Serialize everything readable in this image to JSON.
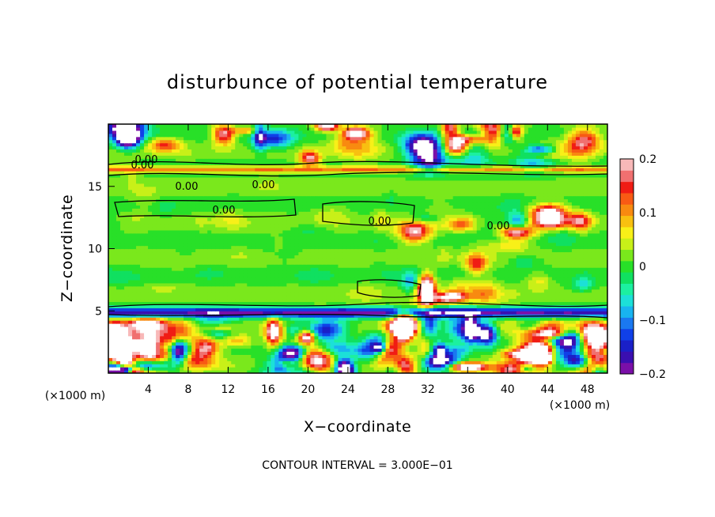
{
  "chart_data": {
    "type": "heatmap",
    "title": "disturbunce of potential temperature",
    "xlabel": "X−coordinate",
    "ylabel": "Z−coordinate",
    "x_unit": "(×1000 m)",
    "y_unit": "(×1000 m)",
    "xlim": [
      0,
      50
    ],
    "ylim": [
      0,
      20
    ],
    "x_ticks": [
      4,
      8,
      12,
      16,
      20,
      24,
      28,
      32,
      36,
      40,
      44,
      48
    ],
    "y_ticks": [
      5,
      10,
      15
    ],
    "colorbar": {
      "range": [
        -0.2,
        0.2
      ],
      "ticks": [
        0.2,
        0.1,
        0,
        -0.1,
        -0.2
      ],
      "tick_labels": [
        "0.2",
        "0.1",
        "0",
        "−0.1",
        "−0.2"
      ],
      "colors": [
        "#7a0fa8",
        "#3a0fb0",
        "#1a20c8",
        "#1040e8",
        "#1a78f0",
        "#18b4f0",
        "#1ce0d8",
        "#1cf0a0",
        "#10e060",
        "#28e028",
        "#7ae81c",
        "#c8f018",
        "#f8f018",
        "#f8c010",
        "#f88a10",
        "#f85a14",
        "#f01c14",
        "#f07070",
        "#f8b8b8"
      ]
    },
    "contour_labels": [
      "0.00",
      "0.00",
      "0.00",
      "0.00",
      "0.00",
      "0.00",
      "0.00"
    ],
    "contour_interval": "CONTOUR INTERVAL = 3.000E−01",
    "grid": false,
    "legend_position": "right"
  }
}
